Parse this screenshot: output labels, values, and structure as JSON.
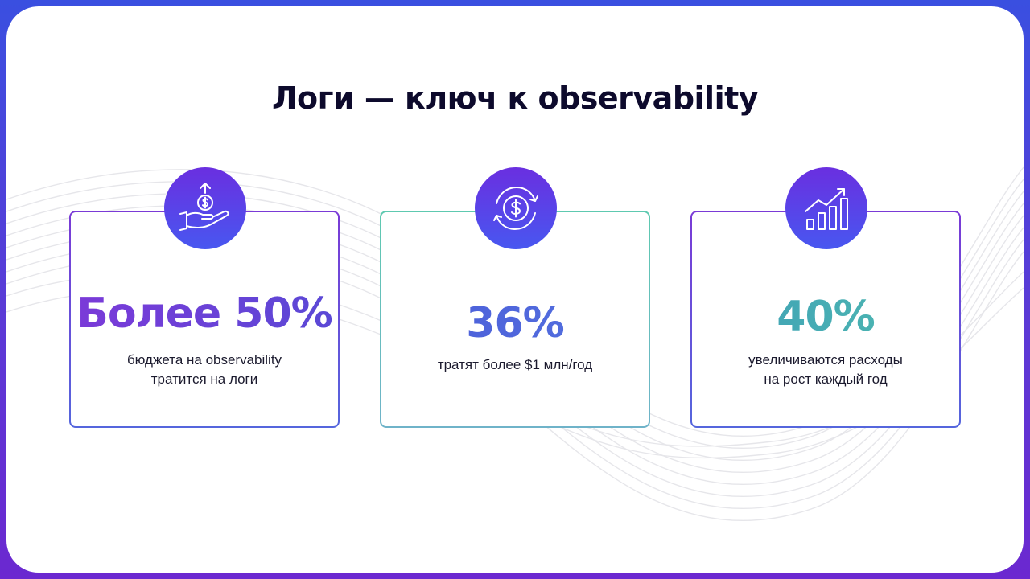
{
  "title": "Логи — ключ к observability",
  "colors": {
    "frame_top": "#3a4fe0",
    "frame_bottom": "#6b28d0",
    "badge_top": "#6a2fe0",
    "badge_bottom": "#4857f0",
    "title": "#0d0a2c"
  },
  "cards": [
    {
      "icon": "hand-coin-up-arrow-icon",
      "value": "Более 50%",
      "lines": [
        "бюджета на observability",
        "тратится на логи"
      ]
    },
    {
      "icon": "dollar-cycle-icon",
      "value": "36%",
      "lines": [
        "тратят более $1 млн/год"
      ]
    },
    {
      "icon": "growth-chart-icon",
      "value": "40%",
      "lines": [
        "увеличиваются расходы",
        "на рост каждый год"
      ]
    }
  ]
}
